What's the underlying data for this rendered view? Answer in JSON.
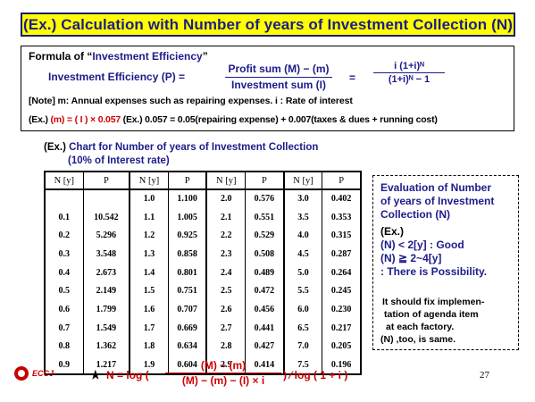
{
  "title": "(Ex.) Calculation with Number of years of Investment Collection (N)",
  "formula_box": {
    "heading_prefix": "Formula of “",
    "heading_term": "Investment  Efficiency",
    "heading_suffix": "”",
    "lhs": "Investment  Efficiency (P)  =",
    "frac1_num": "Profit sum (M) −  (m)",
    "frac1_den": "Investment  sum (I)",
    "eq2": "=",
    "frac2_num": "i (1+i)ᴺ",
    "frac2_den": "(1+i)ᴺ −  1",
    "note": "[Note]  m: Annual expenses such as repairing expenses.  i : Rate of interest",
    "ex_prefix": "(Ex.) ",
    "ex_red": "(m) = ( I ) × 0.057",
    "ex_rest": "  (Ex.) 0.057 = 0.05(repairing expense) + 0.007(taxes & dues + running cost)"
  },
  "chart_heading": {
    "prefix": "(Ex.) ",
    "title": "Chart  for  Number  of years  of Investment  Collection",
    "subtitle": "(10%  of Interest  rate)"
  },
  "table": {
    "headers": [
      "N [y]",
      "P",
      "N [y]",
      "P",
      "N [y]",
      "P",
      "N [y]",
      "P"
    ],
    "rows": [
      [
        "",
        "",
        "1.0",
        "1.100",
        "2.0",
        "0.576",
        "3.0",
        "0.402"
      ],
      [
        "0.1",
        "10.542",
        "1.1",
        "1.005",
        "2.1",
        "0.551",
        "3.5",
        "0.353"
      ],
      [
        "0.2",
        "5.296",
        "1.2",
        "0.925",
        "2.2",
        "0.529",
        "4.0",
        "0.315"
      ],
      [
        "0.3",
        "3.548",
        "1.3",
        "0.858",
        "2.3",
        "0.508",
        "4.5",
        "0.287"
      ],
      [
        "0.4",
        "2.673",
        "1.4",
        "0.801",
        "2.4",
        "0.489",
        "5.0",
        "0.264"
      ],
      [
        "0.5",
        "2.149",
        "1.5",
        "0.751",
        "2.5",
        "0.472",
        "5.5",
        "0.245"
      ],
      [
        "0.6",
        "1.799",
        "1.6",
        "0.707",
        "2.6",
        "0.456",
        "6.0",
        "0.230"
      ],
      [
        "0.7",
        "1.549",
        "1.7",
        "0.669",
        "2.7",
        "0.441",
        "6.5",
        "0.217"
      ],
      [
        "0.8",
        "1.362",
        "1.8",
        "0.634",
        "2.8",
        "0.427",
        "7.0",
        "0.205"
      ],
      [
        "0.9",
        "1.217",
        "1.9",
        "0.604",
        "2.9",
        "0.414",
        "7.5",
        "0.196"
      ]
    ]
  },
  "evaluation": {
    "title_lines": [
      "Evaluation of Number",
      "of years  of Investment",
      "Collection (N)"
    ],
    "ex_label": "(Ex.)",
    "good": "(N)  <  2[y]  : Good",
    "possible": "(N)  ≧  2~4[y]",
    "possible_note": "  : There is Possibility.",
    "note_lines": [
      "It should fix  implemen-",
      "tation of agenda item",
      "at each factory.",
      "(N) ,too, is same."
    ]
  },
  "bottom_formula": {
    "star": "★",
    "lhs": "N = log  (",
    "num": "(M)  −  (m)",
    "den": "(M) − (m) − (I) × i",
    "tail": ")   ⁄ log ( 1 + i )"
  },
  "logo_text": "ECCJ",
  "page_number": "27",
  "colors": {
    "title_bg": "#ffff00",
    "title_text": "#1c1c8a",
    "accent_red": "#d00000"
  }
}
